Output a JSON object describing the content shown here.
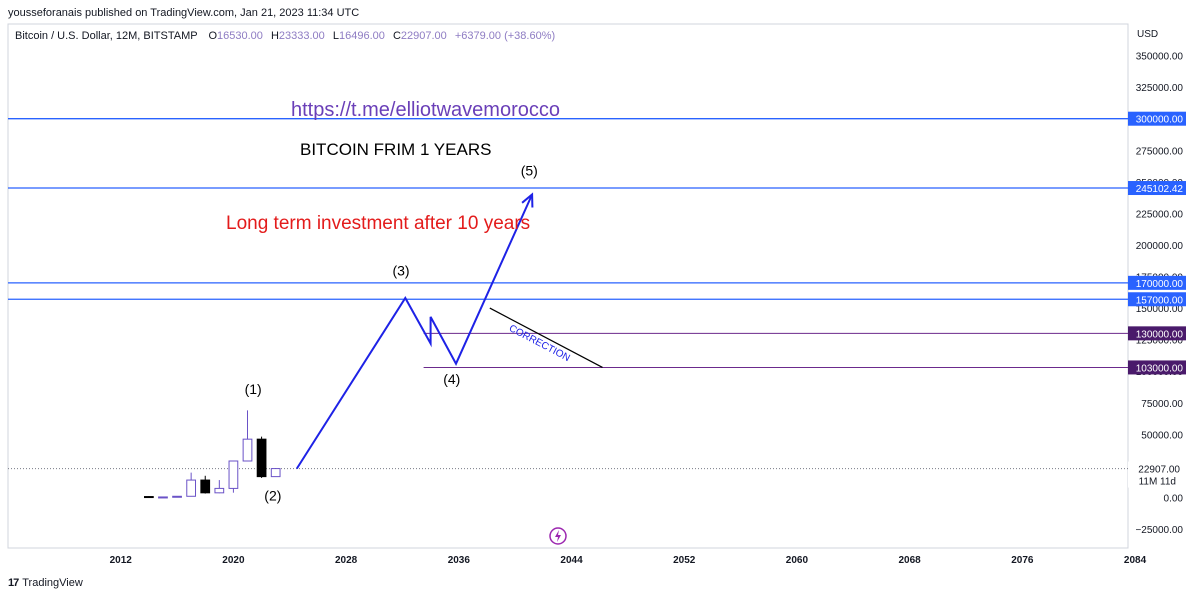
{
  "header": {
    "published": "yousseforanais published on TradingView.com, Jan 21, 2023 11:34 UTC"
  },
  "legend": {
    "symbol": "Bitcoin / U.S. Dollar, 12M, BITSTAMP",
    "o_label": "O",
    "o_value": "16530.00",
    "h_label": "H",
    "h_value": "23333.00",
    "l_label": "L",
    "l_value": "16496.00",
    "c_label": "C",
    "c_value": "22907.00",
    "change": "+6379.00 (+38.60%)"
  },
  "footer": {
    "brand": "TradingView"
  },
  "colors": {
    "accent_blue": "#1e22e6",
    "hline_blue": "#2962ff",
    "purple": "#6b2a8c",
    "red_text": "#e31b1b",
    "link_purple": "#6a3fb8",
    "down_candle": "#000000",
    "up_candle_border": "#6a52c7"
  },
  "chart_data": {
    "type": "candlestick",
    "currency": "USD",
    "xlim": [
      2004,
      2083.5
    ],
    "ylim": [
      -40000,
      375000
    ],
    "x_ticks": [
      "2012",
      "2020",
      "2028",
      "2036",
      "2044",
      "2052",
      "2060",
      "2068",
      "2076",
      "2084"
    ],
    "y_ticks": [
      "350000.00",
      "325000.00",
      "300000.00",
      "275000.00",
      "250000.00",
      "225000.00",
      "200000.00",
      "175000.00",
      "150000.00",
      "125000.00",
      "100000.00",
      "75000.00",
      "50000.00",
      "25000.00",
      "0.00",
      "−25000.00"
    ],
    "candles": [
      {
        "year": 2014,
        "open": 750,
        "high": 1000,
        "low": 300,
        "close": 320
      },
      {
        "year": 2015,
        "open": 320,
        "high": 500,
        "low": 160,
        "close": 430
      },
      {
        "year": 2016,
        "open": 430,
        "high": 1000,
        "low": 350,
        "close": 960
      },
      {
        "year": 2017,
        "open": 960,
        "high": 19700,
        "low": 750,
        "close": 13800
      },
      {
        "year": 2018,
        "open": 13800,
        "high": 17200,
        "low": 3100,
        "close": 3700
      },
      {
        "year": 2019,
        "open": 3700,
        "high": 13800,
        "low": 3400,
        "close": 7200
      },
      {
        "year": 2020,
        "open": 7200,
        "high": 29300,
        "low": 3800,
        "close": 28900
      },
      {
        "year": 2021,
        "open": 28900,
        "high": 69000,
        "low": 28800,
        "close": 46200
      },
      {
        "year": 2022,
        "open": 46200,
        "high": 48200,
        "low": 15500,
        "close": 16530
      },
      {
        "year": 2023,
        "open": 16530,
        "high": 23333,
        "low": 16496,
        "close": 22907
      }
    ],
    "horizontal_lines": [
      {
        "price": 300000,
        "label": "300000.00",
        "color": "#2962ff"
      },
      {
        "price": 245102.42,
        "label": "245102.42",
        "color": "#2962ff"
      },
      {
        "price": 170000,
        "label": "170000.00",
        "color": "#2962ff"
      },
      {
        "price": 157000,
        "label": "157000.00",
        "color": "#2962ff"
      },
      {
        "price": 130000,
        "label": "130000.00",
        "color": "#6b2a8c",
        "from_year": 2033.5
      },
      {
        "price": 103000,
        "label": "103000.00",
        "color": "#6b2a8c",
        "from_year": 2033.5
      }
    ],
    "last_price": {
      "price": 22907,
      "label": "22907.00",
      "countdown": "11M 11d"
    },
    "wave_path": [
      {
        "year": 2024.5,
        "price": 22907
      },
      {
        "year": 2032.2,
        "price": 158000
      },
      {
        "year": 2034,
        "price": 122000
      },
      {
        "year": 2034,
        "price": 143000
      },
      {
        "year": 2035.8,
        "price": 106000
      },
      {
        "year": 2041.2,
        "price": 240000
      }
    ],
    "wave_labels": [
      {
        "text": "(1)",
        "year": 2021.4,
        "price": 82000
      },
      {
        "text": "(2)",
        "year": 2022.8,
        "price": -2500
      },
      {
        "text": "(3)",
        "year": 2031.9,
        "price": 176000
      },
      {
        "text": "(4)",
        "year": 2035.5,
        "price": 90000
      },
      {
        "text": "(5)",
        "year": 2041.0,
        "price": 255000
      }
    ],
    "correction": {
      "text": "CORRECTION",
      "from": {
        "year": 2038.2,
        "price": 150000
      },
      "to": {
        "year": 2046.2,
        "price": 103000
      }
    },
    "annotations": {
      "link": "https://t.me/elliotwavemorocco",
      "title": "BITCOIN FRIM 1 YEARS",
      "subtitle": "Long term investment after 10 years"
    }
  }
}
